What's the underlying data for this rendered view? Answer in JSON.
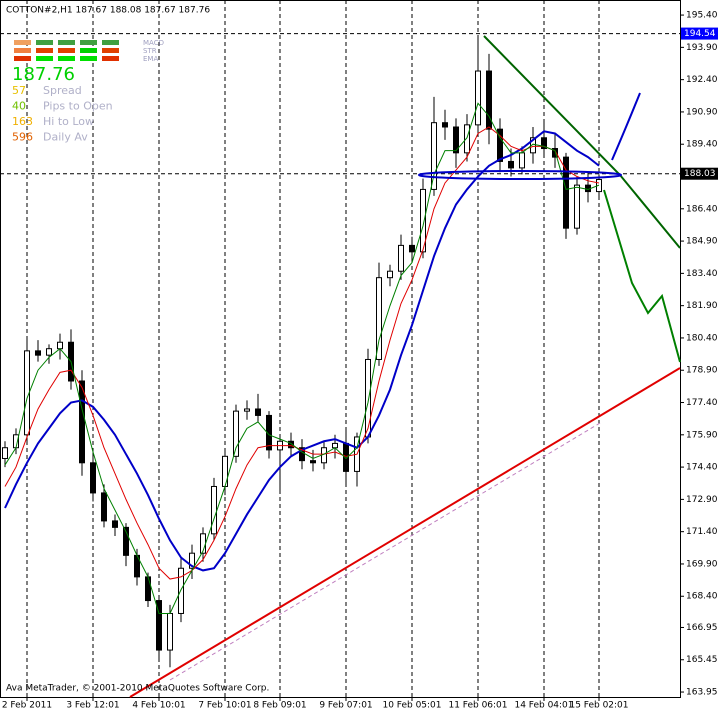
{
  "chart_data": {
    "type": "candlestick",
    "title": "COTTON#2,H1 187.67 188.08 187.67 187.76",
    "categories": [
      null,
      null,
      "2 Feb 2011",
      null,
      null,
      null,
      null,
      null,
      "3 Feb 12:01",
      null,
      null,
      null,
      null,
      null,
      "4 Feb 10:01",
      null,
      null,
      null,
      null,
      null,
      "7 Feb 10:01",
      null,
      null,
      null,
      null,
      "8 Feb 09:01",
      null,
      null,
      null,
      null,
      null,
      "9 Feb 07:01",
      null,
      null,
      null,
      null,
      null,
      "10 Feb 05:01",
      null,
      null,
      null,
      null,
      null,
      "11 Feb 06:01",
      null,
      null,
      null,
      null,
      null,
      "14 Feb 04:01",
      null,
      null,
      null,
      null,
      "15 Feb 02:01"
    ],
    "open": [
      174.8,
      175.3,
      175.9,
      179.8,
      179.6,
      179.9,
      180.2,
      178.4,
      174.6,
      173.2,
      171.9,
      171.6,
      170.3,
      169.3,
      168.2,
      165.9,
      167.6,
      169.7,
      170.4,
      171.3,
      173.5,
      174.9,
      177.0,
      177.1,
      176.8,
      175.2,
      175.6,
      175.3,
      174.7,
      174.6,
      175.3,
      175.5,
      174.2,
      175.8,
      179.4,
      183.2,
      183.5,
      184.7,
      184.4,
      187.3,
      190.4,
      190.2,
      189.0,
      190.3,
      192.8,
      190.1,
      188.6,
      188.3,
      189.0,
      189.7,
      189.2,
      188.8,
      185.5,
      187.5,
      187.2
    ],
    "high": [
      175.6,
      176.2,
      180.4,
      180.3,
      180.1,
      180.6,
      180.8,
      178.9,
      175.2,
      173.6,
      172.2,
      171.8,
      170.6,
      169.5,
      168.4,
      168.0,
      170.2,
      170.8,
      171.6,
      173.9,
      175.2,
      177.3,
      177.5,
      177.8,
      177.0,
      175.9,
      176.0,
      175.7,
      175.2,
      175.6,
      175.9,
      176.2,
      176.0,
      179.9,
      183.9,
      183.8,
      185.2,
      185.1,
      187.8,
      191.6,
      191.0,
      190.6,
      190.8,
      194.3,
      193.6,
      190.6,
      189.2,
      189.3,
      190.2,
      190.4,
      189.9,
      189.0,
      187.9,
      188.1,
      188.0
    ],
    "low": [
      174.4,
      175.0,
      175.6,
      179.3,
      179.2,
      179.4,
      178.0,
      174.0,
      172.8,
      171.6,
      171.2,
      169.8,
      168.9,
      167.9,
      165.4,
      165.1,
      167.2,
      169.2,
      170.0,
      171.0,
      173.1,
      174.6,
      176.6,
      176.5,
      174.8,
      173.2,
      174.9,
      174.3,
      174.2,
      174.3,
      174.8,
      173.6,
      173.5,
      175.5,
      179.1,
      182.8,
      183.1,
      183.9,
      184.1,
      187.0,
      189.6,
      188.3,
      188.6,
      189.8,
      189.4,
      188.1,
      187.9,
      188.0,
      188.5,
      188.9,
      188.3,
      185.0,
      185.2,
      186.7,
      186.9
    ],
    "close": [
      175.3,
      175.9,
      179.8,
      179.6,
      179.9,
      180.2,
      178.4,
      174.6,
      173.2,
      171.9,
      171.6,
      170.3,
      169.3,
      168.2,
      165.9,
      167.6,
      169.7,
      170.4,
      171.3,
      173.5,
      174.9,
      177.0,
      177.1,
      176.8,
      175.2,
      175.6,
      175.3,
      174.7,
      174.6,
      175.3,
      175.5,
      174.2,
      175.8,
      179.4,
      183.2,
      183.5,
      184.7,
      184.4,
      187.3,
      190.4,
      190.2,
      189.0,
      190.3,
      192.8,
      190.1,
      188.6,
      188.3,
      189.0,
      189.7,
      189.2,
      188.8,
      185.5,
      187.5,
      187.2,
      187.76
    ],
    "series": [
      {
        "color": "#0000c8",
        "values": [
          172.5,
          173.6,
          174.6,
          175.5,
          176.2,
          176.9,
          177.4,
          177.5,
          177.2,
          176.6,
          175.9,
          175.0,
          174.1,
          173.1,
          172.0,
          171.0,
          170.2,
          169.8,
          169.6,
          169.7,
          170.4,
          171.3,
          172.2,
          173.0,
          173.8,
          174.4,
          174.9,
          175.2,
          175.4,
          175.6,
          175.7,
          175.5,
          175.3,
          175.8,
          176.8,
          178.0,
          179.6,
          181.0,
          182.6,
          184.2,
          185.5,
          186.6,
          187.3,
          187.9,
          188.4,
          188.7,
          188.9,
          189.2,
          189.6,
          190.0,
          189.9,
          189.5,
          189.1,
          188.8,
          188.4
        ]
      },
      {
        "color": "#e00000",
        "values": [
          173.5,
          174.4,
          175.8,
          177.1,
          178.0,
          178.8,
          178.9,
          178.1,
          176.8,
          175.3,
          174.1,
          172.9,
          171.8,
          170.8,
          169.7,
          169.2,
          169.3,
          169.6,
          170.1,
          171.0,
          172.1,
          173.4,
          174.5,
          175.3,
          175.4,
          175.4,
          175.4,
          175.2,
          175.0,
          175.0,
          175.1,
          174.9,
          175.0,
          176.2,
          178.4,
          180.3,
          182.0,
          183.1,
          184.5,
          186.4,
          187.6,
          188.2,
          188.8,
          189.9,
          190.2,
          189.8,
          189.3,
          189.1,
          189.3,
          189.3,
          189.1,
          188.2,
          187.9,
          187.7,
          187.6
        ]
      },
      {
        "color": "#008000",
        "values": [
          174.5,
          175.3,
          177.6,
          178.9,
          179.5,
          179.9,
          179.3,
          177.1,
          175.1,
          173.4,
          172.4,
          171.4,
          170.3,
          169.3,
          167.6,
          167.6,
          168.7,
          169.6,
          170.5,
          172.0,
          173.5,
          175.3,
          176.2,
          176.5,
          175.9,
          175.7,
          175.5,
          175.1,
          174.8,
          175.0,
          175.3,
          174.8,
          175.3,
          177.4,
          180.3,
          181.9,
          183.3,
          183.9,
          185.6,
          188.0,
          189.1,
          189.1,
          189.7,
          191.3,
          190.7,
          189.7,
          189.0,
          189.0,
          189.4,
          189.3,
          189.1,
          187.3,
          187.4,
          187.3,
          187.5
        ]
      }
    ],
    "ylim": [
      163.58,
      196.1
    ],
    "yticks": [
      163.95,
      165.45,
      166.95,
      {
        "value": 168.4,
        "label": "168.40"
      },
      {
        "value": 169.9,
        "label": "169.90"
      },
      {
        "value": 171.4,
        "label": "171.40"
      },
      {
        "value": 172.9,
        "label": "172.90"
      },
      {
        "value": 174.4,
        "label": "174.40"
      },
      {
        "value": 175.9,
        "label": "175.90"
      },
      {
        "value": 177.4,
        "label": "177.40"
      },
      {
        "value": 178.9,
        "label": "178.90"
      },
      {
        "value": 180.4,
        "label": "180.40"
      },
      {
        "value": 181.9,
        "label": "181.90"
      },
      {
        "value": 183.4,
        "label": "183.40"
      },
      {
        "value": 184.9,
        "label": "184.90"
      },
      {
        "value": 186.4,
        "label": "186.40"
      },
      {
        "value": 189.4,
        "label": "189.40"
      },
      {
        "value": 190.9,
        "label": "190.90"
      },
      {
        "value": 192.4,
        "label": "192.40"
      },
      {
        "value": 193.9,
        "label": "193.90"
      },
      {
        "value": 195.4,
        "label": "195.40"
      }
    ],
    "price_levels": [
      {
        "value": 194.54,
        "color": "#0000ff"
      },
      {
        "value": 188.03,
        "color": "#000000"
      }
    ],
    "grid": true
  },
  "panel": {
    "price": "187.76",
    "indicators": [
      "MACD",
      "STR",
      "EMA"
    ],
    "stats": [
      {
        "value": "57",
        "label": "Spread",
        "color": "#e8c000"
      },
      {
        "value": "40",
        "label": "Pips to Open",
        "color": "#70c000"
      },
      {
        "value": "163",
        "label": "Hi to Low",
        "color": "#f0b000"
      },
      {
        "value": "596",
        "label": "Daily Av",
        "color": "#e06000"
      }
    ]
  },
  "footer": "Ava MetaTrader, © 2001-2010 MetaQuotes Software Corp."
}
